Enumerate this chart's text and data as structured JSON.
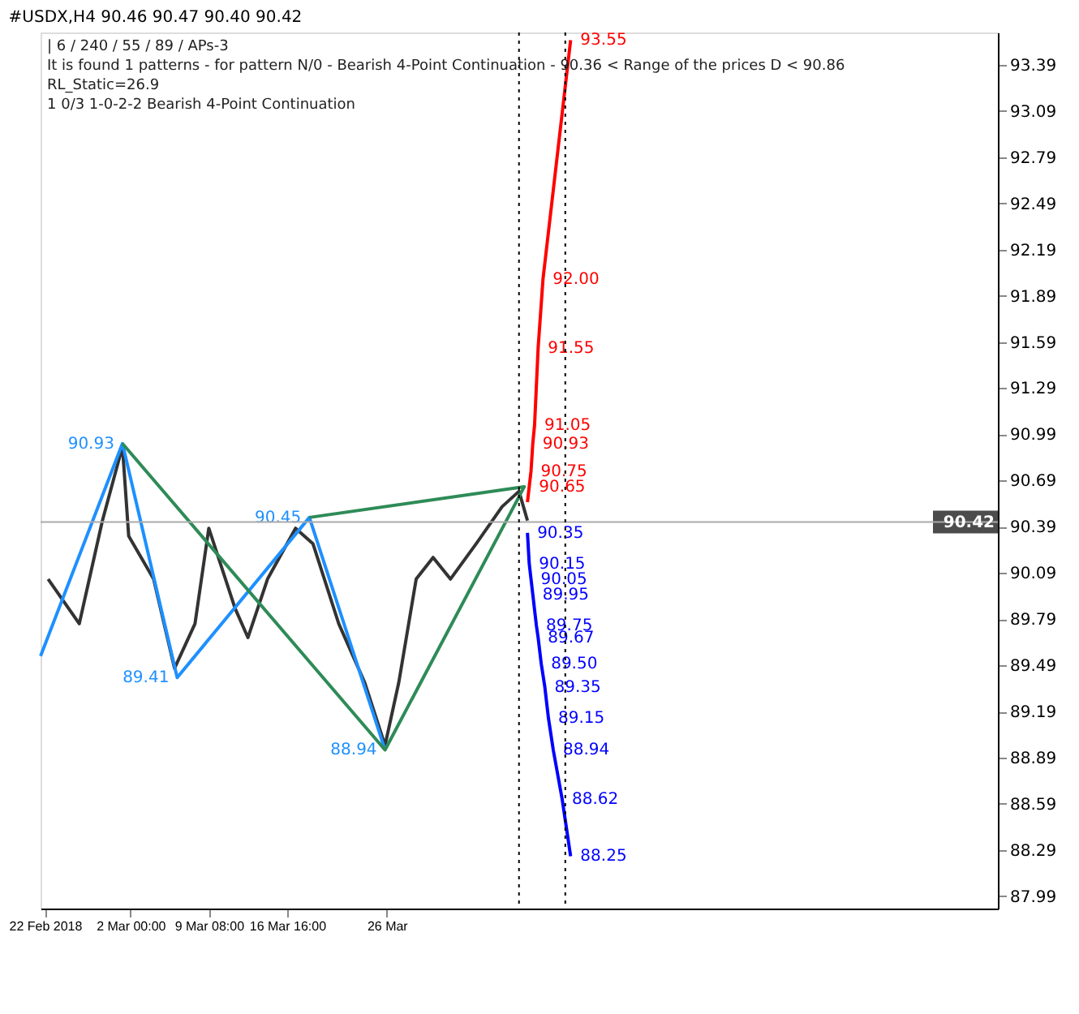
{
  "chart_data": {
    "type": "line",
    "title": "#USDX,H4  90.46 90.47 90.40 90.42",
    "annotations": [
      "| 6 / 240 / 55 / 89 / APs-3",
      "It is found 1 patterns  -  for pattern N/0 - Bearish 4-Point Continuation - 90.36 < Range of the prices D < 90.86",
      "RL_Static=26.9",
      "1      0/3       1-0-2-2       Bearish 4-Point Continuation"
    ],
    "series": [
      {
        "color": "#333333",
        "x": [
          "2018-02-22T07:00",
          "2018-02-25T05:00",
          "2018-02-27T09:00",
          "2018-03-01T06:00",
          "2018-03-01T20:00",
          "2018-03-04T04:00",
          "2018-03-06T03:00",
          "2018-03-08T01:00",
          "2018-03-09T08:00",
          "2018-03-11T19:00",
          "2018-03-13T00:00",
          "2018-03-14T20:00",
          "2018-03-17T11:00",
          "2018-03-19T02:00",
          "2018-03-21T12:00",
          "2018-03-23T22:00",
          "2018-03-25T20:00",
          "2018-03-27T03:00",
          "2018-03-28T18:00",
          "2018-03-30T08:00",
          "2018-03-31T23:00",
          "2018-04-03T09:00",
          "2018-04-05T19:00",
          "2018-04-07T09:00",
          "2018-04-08T04:00"
        ],
        "values": [
          90.05,
          89.76,
          90.43,
          90.91,
          90.33,
          90.05,
          89.47,
          89.76,
          90.38,
          89.86,
          89.67,
          90.05,
          90.38,
          90.28,
          89.76,
          89.38,
          88.97,
          89.38,
          90.05,
          90.19,
          90.05,
          90.28,
          90.52,
          90.62,
          90.43
        ]
      },
      {
        "color": "#1e90ff",
        "x": [
          "2018-02-21T14:00",
          "2018-03-01T06:00",
          "2018-03-06T09:00",
          "2018-03-18T18:00",
          "2018-03-25T20:00"
        ],
        "values": [
          89.55,
          90.93,
          89.41,
          90.45,
          88.94
        ],
        "value_labels": [
          null,
          "90.93",
          "89.41",
          "90.45",
          "88.94"
        ]
      },
      {
        "color": "#2e8b57",
        "x": [
          "2018-03-01T06:00",
          "2018-03-25T20:00",
          "2018-04-07T21:00",
          "2018-03-18T18:00"
        ],
        "values": [
          90.93,
          88.94,
          90.65,
          90.45
        ]
      },
      {
        "color": "#ff0000",
        "x": [
          "2018-04-08T04:00",
          "2018-04-08T08:00",
          "2018-04-08T12:00",
          "2018-04-08T16:00",
          "2018-04-08T20:00",
          "2018-04-09T04:00",
          "2018-04-09T15:00",
          "2018-04-12T05:00"
        ],
        "values": [
          90.55,
          90.65,
          90.75,
          90.93,
          91.05,
          91.55,
          92.0,
          93.55
        ],
        "value_labels": [
          null,
          "90.65",
          "90.75",
          "90.93",
          "91.05",
          "91.55",
          "92.00",
          "93.55"
        ]
      },
      {
        "color": "#0000ff",
        "x": [
          "2018-04-08T04:00",
          "2018-04-08T08:00",
          "2018-04-08T12:00",
          "2018-04-08T16:00",
          "2018-04-09T00:00",
          "2018-04-09T04:00",
          "2018-04-09T11:00",
          "2018-04-09T19:00",
          "2018-04-10T03:00",
          "2018-04-10T14:00",
          "2018-04-11T10:00",
          "2018-04-12T05:00"
        ],
        "values": [
          90.35,
          90.15,
          90.05,
          89.95,
          89.75,
          89.67,
          89.5,
          89.35,
          89.15,
          88.94,
          88.62,
          88.25
        ],
        "value_labels": [
          "90.35",
          "90.15",
          "90.05",
          "89.95",
          "89.75",
          "89.67",
          "89.50",
          "89.35",
          "89.15",
          "88.94",
          "88.62",
          "88.25"
        ]
      }
    ],
    "xlim": [
      "2018-02-21T14:00",
      "2018-05-22T05:00"
    ],
    "xticks": [
      {
        "value": "2018-02-22T00:00",
        "label": "22 Feb 2018"
      },
      {
        "value": "2018-03-02T00:00",
        "label": "2 Mar 00:00"
      },
      {
        "value": "2018-03-09T08:00",
        "label": "9 Mar 08:00"
      },
      {
        "value": "2018-03-16T16:00",
        "label": "16 Mar 16:00"
      },
      {
        "value": "2018-03-26T00:00",
        "label": "26 Mar"
      }
    ],
    "ylim": [
      87.91,
      93.6
    ],
    "yticks": [
      87.99,
      88.29,
      88.59,
      88.89,
      89.19,
      89.49,
      89.79,
      90.09,
      90.39,
      90.69,
      90.99,
      91.29,
      91.59,
      91.89,
      92.19,
      92.49,
      92.79,
      93.09,
      93.39
    ],
    "ref_lines": [
      {
        "axis": "y",
        "value": 90.42,
        "label": "90.42",
        "color": "#aaaaaa",
        "line_style": "solid"
      },
      {
        "axis": "x",
        "value": "2018-04-07T09:00",
        "label": null,
        "color": "#000000",
        "line_style": "dotted"
      },
      {
        "axis": "x",
        "value": "2018-04-11T17:00",
        "label": null,
        "color": "#000000",
        "line_style": "dotted"
      }
    ],
    "grid": false,
    "marker": "none",
    "line_style": "solid"
  }
}
